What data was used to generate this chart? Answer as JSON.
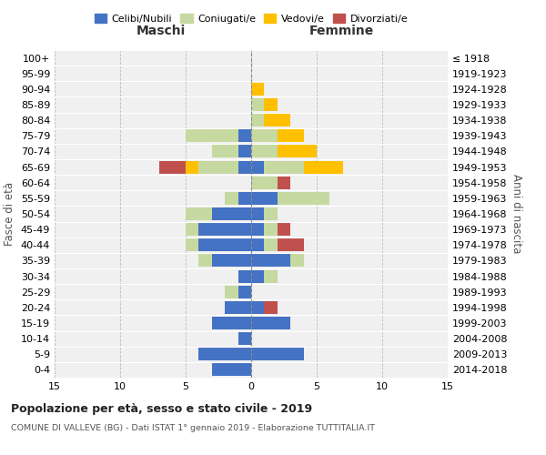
{
  "age_groups": [
    "0-4",
    "5-9",
    "10-14",
    "15-19",
    "20-24",
    "25-29",
    "30-34",
    "35-39",
    "40-44",
    "45-49",
    "50-54",
    "55-59",
    "60-64",
    "65-69",
    "70-74",
    "75-79",
    "80-84",
    "85-89",
    "90-94",
    "95-99",
    "100+"
  ],
  "birth_years": [
    "2014-2018",
    "2009-2013",
    "2004-2008",
    "1999-2003",
    "1994-1998",
    "1989-1993",
    "1984-1988",
    "1979-1983",
    "1974-1978",
    "1969-1973",
    "1964-1968",
    "1959-1963",
    "1954-1958",
    "1949-1953",
    "1944-1948",
    "1939-1943",
    "1934-1938",
    "1929-1933",
    "1924-1928",
    "1919-1923",
    "≤ 1918"
  ],
  "colors": {
    "celibi": "#4472c4",
    "coniugati": "#c6d9a0",
    "vedovi": "#ffc000",
    "divorziati": "#c0504d"
  },
  "maschi": {
    "celibi": [
      3,
      4,
      1,
      3,
      2,
      1,
      1,
      3,
      4,
      4,
      3,
      1,
      0,
      1,
      1,
      1,
      0,
      0,
      0,
      0,
      0
    ],
    "coniugati": [
      0,
      0,
      0,
      0,
      0,
      1,
      0,
      1,
      1,
      1,
      2,
      1,
      0,
      3,
      2,
      4,
      0,
      0,
      0,
      0,
      0
    ],
    "vedovi": [
      0,
      0,
      0,
      0,
      0,
      0,
      0,
      0,
      0,
      0,
      0,
      0,
      0,
      1,
      0,
      0,
      0,
      0,
      0,
      0,
      0
    ],
    "divorziati": [
      0,
      0,
      0,
      0,
      0,
      0,
      0,
      0,
      0,
      0,
      0,
      0,
      0,
      2,
      0,
      0,
      0,
      0,
      0,
      0,
      0
    ]
  },
  "femmine": {
    "celibi": [
      0,
      4,
      0,
      3,
      1,
      0,
      1,
      3,
      1,
      1,
      1,
      2,
      0,
      1,
      0,
      0,
      0,
      0,
      0,
      0,
      0
    ],
    "coniugati": [
      0,
      0,
      0,
      0,
      0,
      0,
      1,
      1,
      1,
      1,
      1,
      4,
      2,
      3,
      2,
      2,
      1,
      1,
      0,
      0,
      0
    ],
    "vedovi": [
      0,
      0,
      0,
      0,
      0,
      0,
      0,
      0,
      0,
      0,
      0,
      0,
      0,
      3,
      3,
      2,
      2,
      1,
      1,
      0,
      0
    ],
    "divorziati": [
      0,
      0,
      0,
      0,
      1,
      0,
      0,
      0,
      2,
      1,
      0,
      0,
      1,
      0,
      0,
      0,
      0,
      0,
      0,
      0,
      0
    ]
  },
  "xlim": [
    -15,
    15
  ],
  "xticks": [
    -15,
    -10,
    -5,
    0,
    5,
    10,
    15
  ],
  "xticklabels": [
    "15",
    "10",
    "5",
    "0",
    "5",
    "10",
    "15"
  ],
  "title": "Popolazione per età, sesso e stato civile - 2019",
  "subtitle": "COMUNE DI VALLEVE (BG) - Dati ISTAT 1° gennaio 2019 - Elaborazione TUTTITALIA.IT",
  "ylabel_left": "Fasce di età",
  "ylabel_right": "Anni di nascita",
  "header_maschi": "Maschi",
  "header_femmine": "Femmine",
  "legend_labels": [
    "Celibi/Nubili",
    "Coniugati/e",
    "Vedovi/e",
    "Divorziati/e"
  ],
  "background_color": "#f0f0f0"
}
